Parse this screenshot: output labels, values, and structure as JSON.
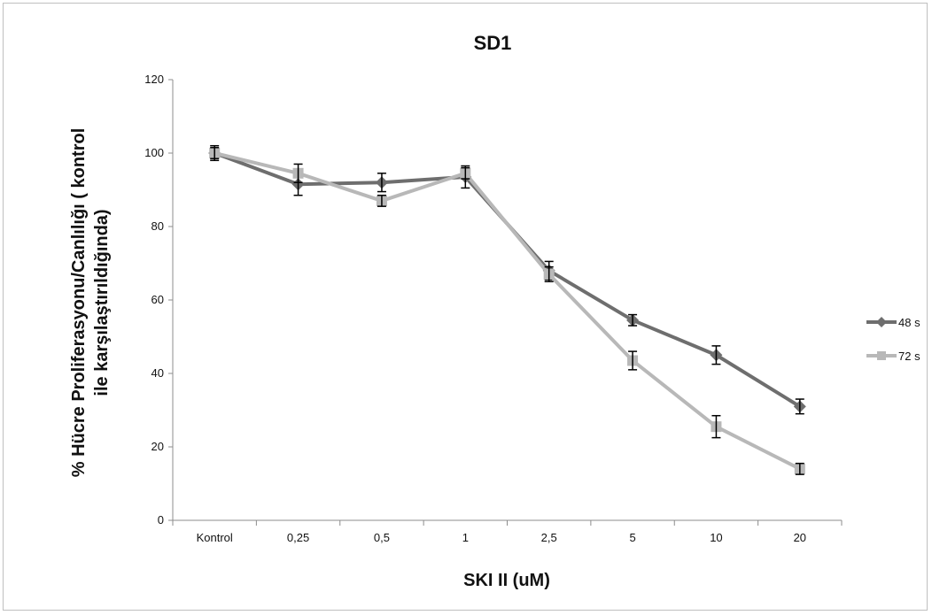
{
  "chart_data": {
    "type": "line",
    "title": "SD1",
    "xlabel": "SKI II (uM)",
    "ylabel_lines": [
      "% Hücre Proliferasyonu/Canlılığı ( kontrol",
      "ile karşılaştırıldığında)"
    ],
    "categories": [
      "Kontrol",
      "0,25",
      "0,5",
      "1",
      "2,5",
      "5",
      "10",
      "20"
    ],
    "ylim": [
      0,
      120
    ],
    "yticks": [
      "0",
      "20",
      "40",
      "60",
      "80",
      "100",
      "120"
    ],
    "grid": false,
    "legend_position": "right",
    "series": [
      {
        "name": "48 s",
        "color": "#6e6e6e",
        "marker": "diamond",
        "values": [
          100,
          91.5,
          92,
          93.5,
          68,
          54.5,
          45,
          31
        ],
        "errors": [
          2,
          3,
          2.5,
          3,
          2.5,
          1.5,
          2.5,
          2
        ]
      },
      {
        "name": "72 s",
        "color": "#b8b8b8",
        "marker": "square",
        "values": [
          100,
          94.5,
          87,
          94.5,
          67,
          43.5,
          25.5,
          14
        ],
        "errors": [
          1.5,
          2.5,
          1.5,
          1.5,
          2,
          2.5,
          3,
          1.5
        ]
      }
    ]
  }
}
